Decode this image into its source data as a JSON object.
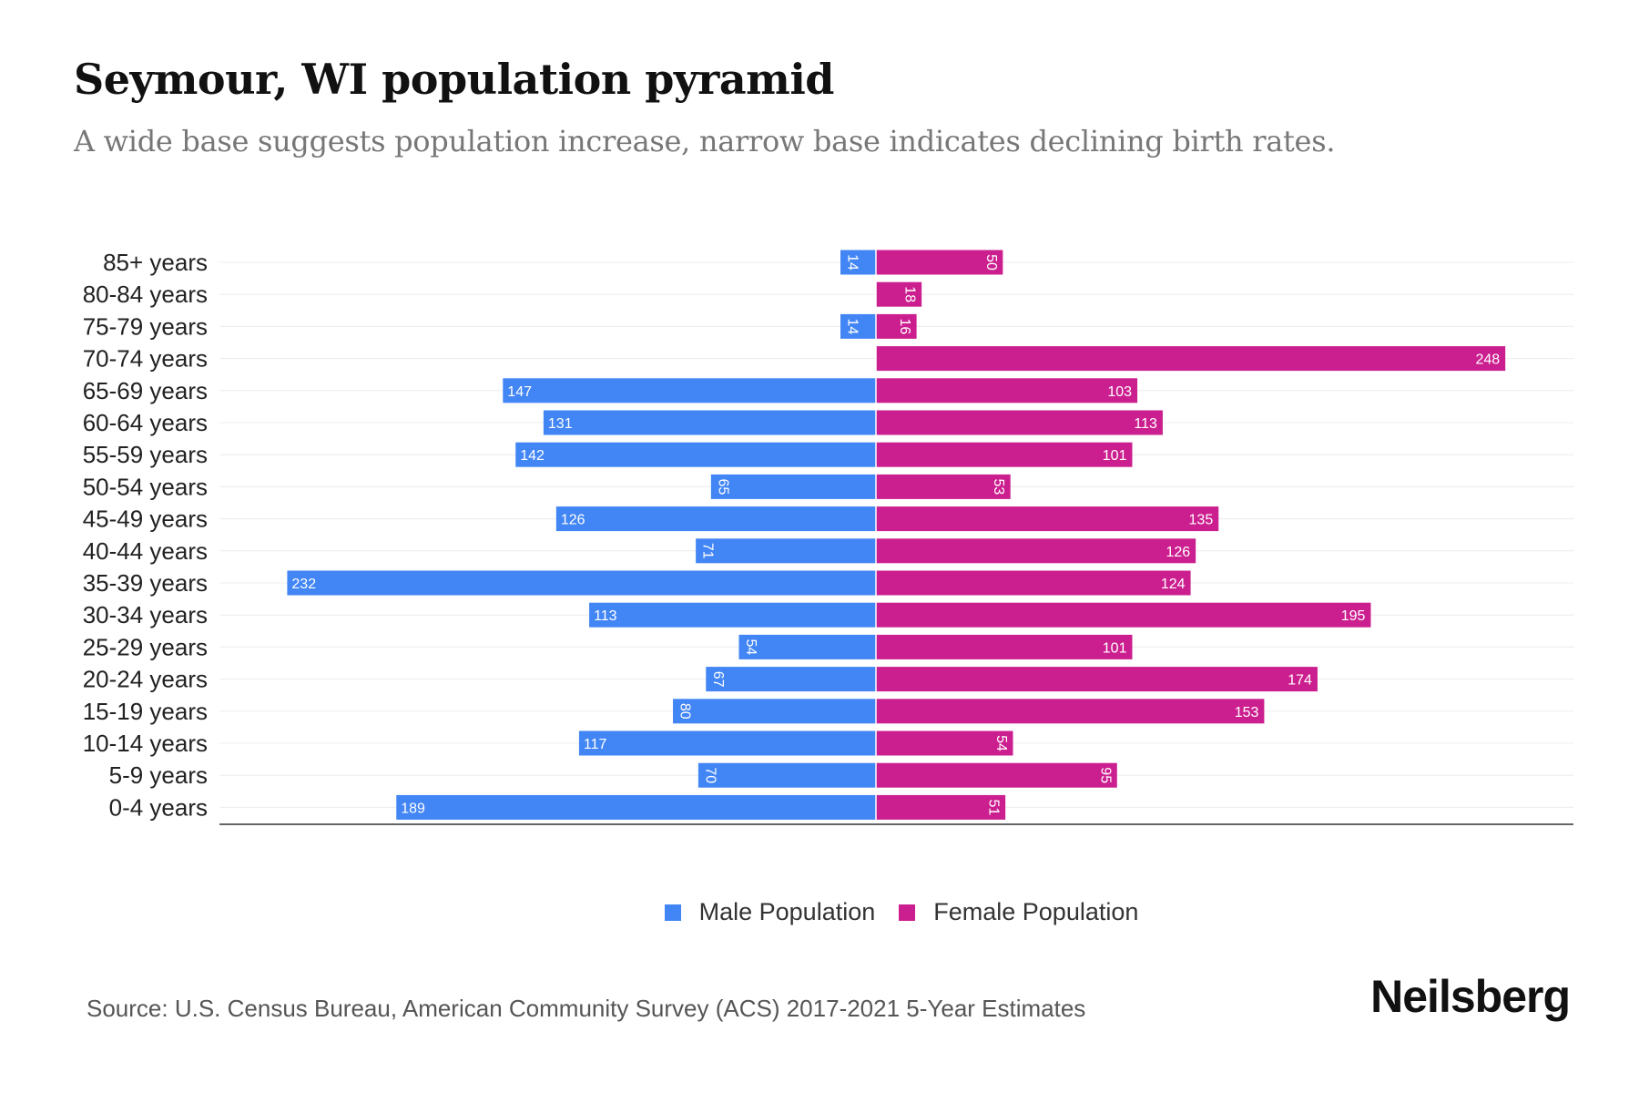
{
  "title": "Seymour, WI population pyramid",
  "subtitle": "A wide base suggests population increase, narrow base indicates declining birth rates.",
  "source": "Source: U.S. Census Bureau, American Community Survey (ACS) 2017-2021 5-Year Estimates",
  "logo": "Neilsberg",
  "chart_data": {
    "type": "bar",
    "orientation": "horizontal-diverging",
    "categories": [
      "85+ years",
      "80-84 years",
      "75-79 years",
      "70-74 years",
      "65-69 years",
      "60-64 years",
      "55-59 years",
      "50-54 years",
      "45-49 years",
      "40-44 years",
      "35-39 years",
      "30-34 years",
      "25-29 years",
      "20-24 years",
      "15-19 years",
      "10-14 years",
      "5-9 years",
      "0-4 years"
    ],
    "series": [
      {
        "name": "Male Population",
        "color": "#4285f4",
        "side": "left",
        "values": [
          14,
          0,
          14,
          0,
          147,
          131,
          142,
          65,
          126,
          71,
          232,
          113,
          54,
          67,
          80,
          117,
          70,
          189
        ]
      },
      {
        "name": "Female Population",
        "color": "#cc1f8f",
        "side": "right",
        "values": [
          50,
          18,
          16,
          248,
          103,
          113,
          101,
          53,
          135,
          126,
          124,
          195,
          101,
          174,
          153,
          54,
          95,
          51
        ]
      }
    ],
    "legend_position": "bottom-center",
    "grid": true
  }
}
